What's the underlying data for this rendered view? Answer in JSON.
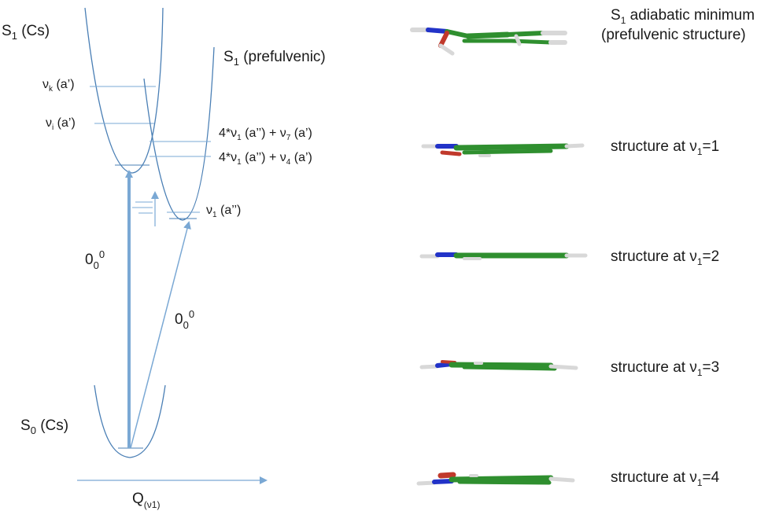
{
  "left_diagram": {
    "s1_cs_label": "S1 (Cs)",
    "s1_prefulvenic_label": "S1 (prefulvenic)",
    "s0_cs_label": "S0 (Cs)",
    "level_vk": "νk (a’)",
    "level_vi": "νi (a’)",
    "level_combo_7": "4*ν1 (a’’) + ν7 (a’)",
    "level_combo_4": "4*ν1 (a’’) + ν4 (a’)",
    "level_v1": "ν1 (a’’)",
    "transition_left": "000",
    "transition_right": "000",
    "axis_label": "Q(ν1)"
  },
  "structures": [
    {
      "caption": "S1 adiabatic minimum",
      "caption2": "(prefulvenic structure)"
    },
    {
      "caption": "structure at ν1=1"
    },
    {
      "caption": "structure at ν1=2"
    },
    {
      "caption": "structure at ν1=3"
    },
    {
      "caption": "structure at ν1=4"
    }
  ],
  "colors": {
    "curve": "#4a7fb5",
    "arrow": "#7aa8d4",
    "carbon": "#2f8f2f",
    "nitrogen": "#2233c8",
    "oxygen": "#c0392b",
    "hydrogen": "#d8d8d8"
  }
}
